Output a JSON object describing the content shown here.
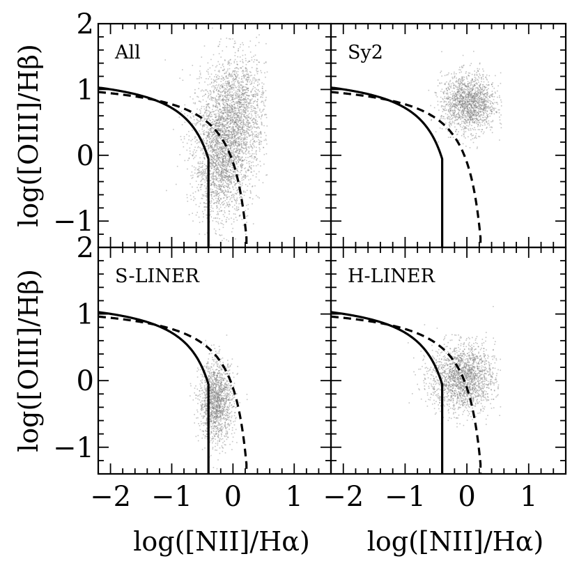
{
  "chart_data": {
    "type": "scatter",
    "layout": "2x2 grid, shared axes",
    "xlabel": "log([NII]/Hα)",
    "ylabel": "log([OIII]/Hβ)",
    "xlim": [
      -2.2,
      1.6
    ],
    "ylim": [
      -1.4,
      2.0
    ],
    "x_ticks": [
      {
        "value": -2,
        "label": "−2"
      },
      {
        "value": -1,
        "label": "−1"
      },
      {
        "value": 0,
        "label": "0"
      },
      {
        "value": 1,
        "label": "1"
      }
    ],
    "y_ticks": [
      {
        "value": -1,
        "label": "−1"
      },
      {
        "value": 0,
        "label": "0"
      },
      {
        "value": 1,
        "label": "1"
      },
      {
        "value": 2,
        "label": "2"
      }
    ],
    "curves": [
      {
        "style": "solid",
        "color": "#000000",
        "formula": "y = 0.61/(x - 0.47) + 1.19, then vertical line at x = -0.4 below curve",
        "x_range": [
          -2.2,
          -0.4
        ],
        "vertical_x": -0.4
      },
      {
        "style": "dashed",
        "color": "#000000",
        "formula": "y = 0.61/(x - 0.47) + 1.19",
        "x_range": [
          -2.2,
          0.22
        ]
      }
    ],
    "point_color": "#7a7a7a",
    "panels": [
      {
        "name": "All",
        "clusters": [
          {
            "cx": -0.2,
            "cy": -0.1,
            "sx": 0.22,
            "sy": 0.45,
            "n": 1600
          },
          {
            "cx": 0.05,
            "cy": 0.75,
            "sx": 0.25,
            "sy": 0.4,
            "n": 1300
          },
          {
            "cx": -0.1,
            "cy": 0.3,
            "sx": 0.3,
            "sy": 0.55,
            "n": 900
          }
        ]
      },
      {
        "name": "Sy2",
        "clusters": [
          {
            "cx": 0.02,
            "cy": 0.8,
            "sx": 0.22,
            "sy": 0.22,
            "n": 1600
          }
        ]
      },
      {
        "name": "S-LINER",
        "clusters": [
          {
            "cx": -0.28,
            "cy": -0.3,
            "sx": 0.14,
            "sy": 0.3,
            "n": 1500
          }
        ]
      },
      {
        "name": "H-LINER",
        "clusters": [
          {
            "cx": -0.08,
            "cy": 0.05,
            "sx": 0.26,
            "sy": 0.25,
            "n": 1900
          }
        ]
      }
    ]
  }
}
